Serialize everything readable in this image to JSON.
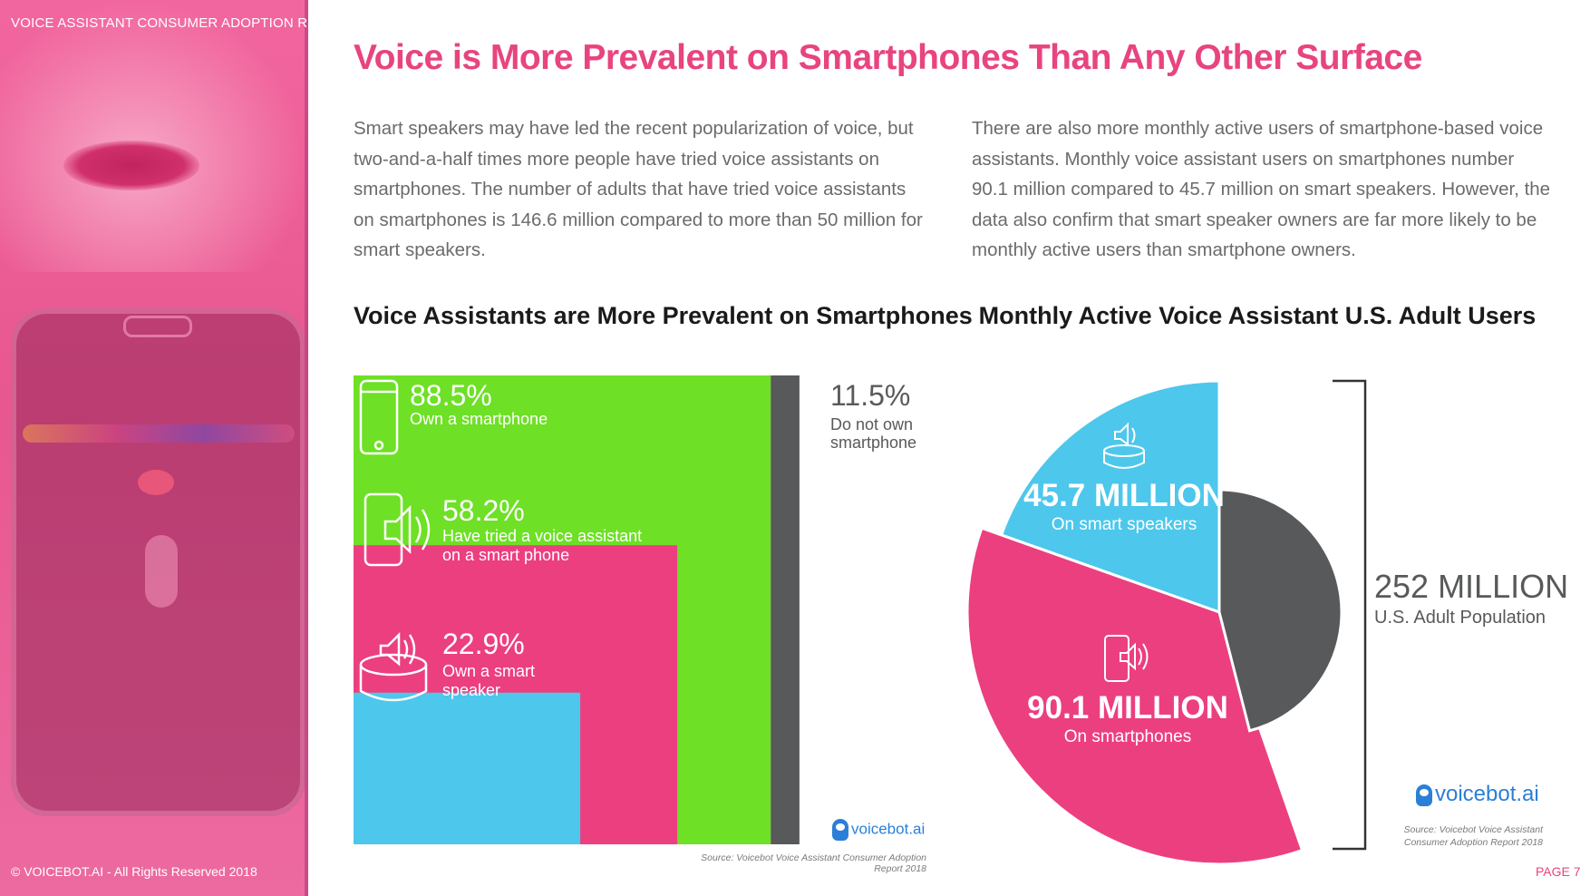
{
  "header": {
    "report_label": "VOICE ASSISTANT CONSUMER ADOPTION REPORT"
  },
  "footer": {
    "copyright": "© VOICEBOT.AI - All Rights Reserved 2018",
    "page": "PAGE 7"
  },
  "page": {
    "title": "Voice is More Prevalent on Smartphones Than Any Other Surface",
    "paragraph_left": "Smart speakers may have led the recent popularization of voice, but two-and-a-half times more people have tried voice assistants on smartphones. The number of adults that have tried voice assistants on smartphones is 146.6 million compared to more than 50 million for smart speakers.",
    "paragraph_right": "There are also more monthly active users of smartphone-based voice assistants. Monthly voice assistant users on smartphones number 90.1 million compared to 45.7 million on smart speakers. However, the data also confirm that smart speaker owners are far more likely to be monthly active users than smartphone owners."
  },
  "colors": {
    "green": "#6ee026",
    "pink": "#ec3f80",
    "blue": "#4dc7ec",
    "dark": "#58595b",
    "accent": "#e8447f"
  },
  "chart_data": [
    {
      "type": "bar",
      "title": "Voice Assistants are More Prevalent on Smartphones",
      "categories": [
        "Own a smartphone",
        "Have tried a voice assistant on a smart phone",
        "Own a smart speaker",
        "Do not own smartphone"
      ],
      "values": [
        88.5,
        58.2,
        22.9,
        11.5
      ],
      "value_labels": [
        "88.5%",
        "58.2%",
        "22.9%",
        "11.5%"
      ],
      "label_lines": [
        [
          "Own a smartphone"
        ],
        [
          "Have tried a voice assistant",
          "on a smart phone"
        ],
        [
          "Own a smart",
          "speaker"
        ],
        [
          "Do not own",
          "smartphone"
        ]
      ],
      "icons": [
        "smartphone-icon",
        "smartphone-speaker-icon",
        "smart-speaker-icon",
        ""
      ],
      "unit": "%",
      "source": "Source: Voicebot Voice Assistant Consumer Adoption Report 2018",
      "logo": "voicebot.ai"
    },
    {
      "type": "pie",
      "title": "Monthly Active Voice Assistant U.S. Adult Users",
      "slices": [
        {
          "value_label": "45.7 MILLION",
          "label": "On smart speakers",
          "value": 45.7,
          "icon": "smart-speaker-icon"
        },
        {
          "value_label": "90.1 MILLION",
          "label": "On smartphones",
          "value": 90.1,
          "icon": "smartphone-speaker-icon"
        },
        {
          "value_label": "",
          "label": "",
          "value": 116.2,
          "icon": ""
        }
      ],
      "total": {
        "value": 252,
        "value_label": "252 MILLION",
        "label": "U.S. Adult Population"
      },
      "source_lines": [
        "Source: Voicebot Voice Assistant",
        "Consumer Adoption Report 2018"
      ],
      "logo": "voicebot.ai"
    }
  ]
}
